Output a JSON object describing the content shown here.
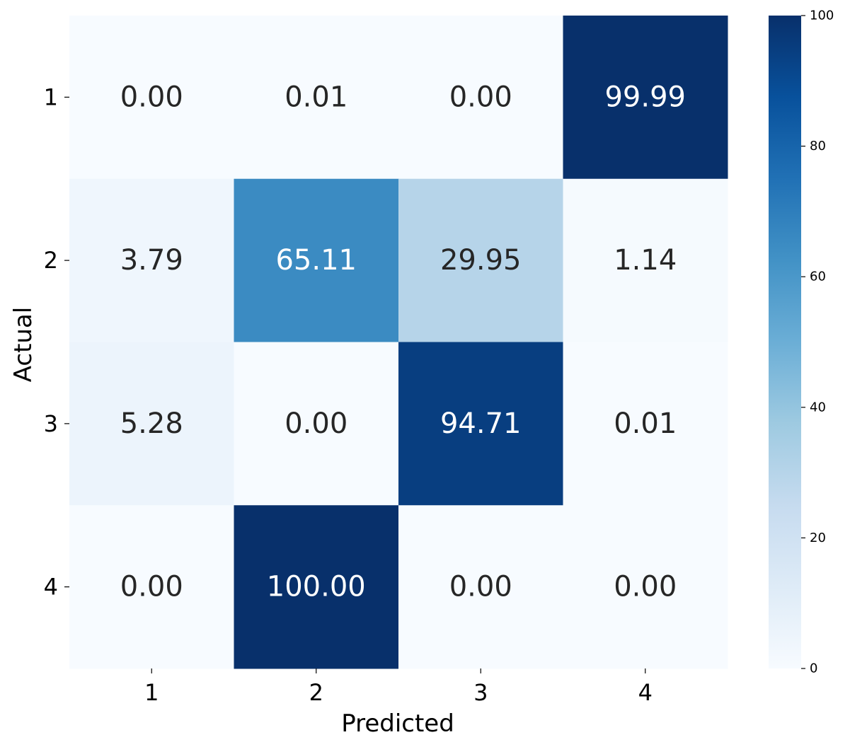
{
  "chart_data": {
    "type": "heatmap",
    "x_categories": [
      "1",
      "2",
      "3",
      "4"
    ],
    "y_categories": [
      "1",
      "2",
      "3",
      "4"
    ],
    "values": [
      [
        0.0,
        0.01,
        0.0,
        99.99
      ],
      [
        3.79,
        65.11,
        29.95,
        1.14
      ],
      [
        5.28,
        0.0,
        94.71,
        0.01
      ],
      [
        0.0,
        100.0,
        0.0,
        0.0
      ]
    ],
    "cell_labels": [
      [
        "0.00",
        "0.01",
        "0.00",
        "99.99"
      ],
      [
        "3.79",
        "65.11",
        "29.95",
        "1.14"
      ],
      [
        "5.28",
        "0.00",
        "94.71",
        "0.01"
      ],
      [
        "0.00",
        "100.00",
        "0.00",
        "0.00"
      ]
    ],
    "xlabel": "Predicted",
    "ylabel": "Actual",
    "colorscale": "Blues",
    "colorbar": {
      "range": [
        0,
        100
      ],
      "ticks": [
        0,
        20,
        40,
        60,
        80,
        100
      ],
      "tick_labels": [
        "0",
        "20",
        "40",
        "60",
        "80",
        "100"
      ]
    },
    "light_text_color": "#ffffff",
    "dark_text_color": "#262626"
  }
}
